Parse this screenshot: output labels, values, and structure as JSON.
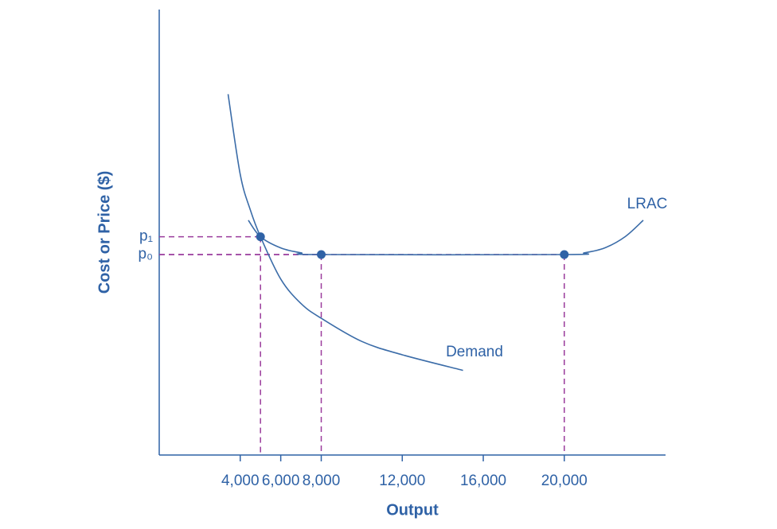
{
  "chart_data": {
    "type": "line",
    "x_label": "Output",
    "y_label": "Cost or Price ($)",
    "xlim": [
      0,
      25000
    ],
    "ylim": [
      0,
      100
    ],
    "xticks": [
      {
        "value": 4000,
        "label": "4,000"
      },
      {
        "value": 6000,
        "label": "6,000"
      },
      {
        "value": 8000,
        "label": "8,000"
      },
      {
        "value": 12000,
        "label": "12,000"
      },
      {
        "value": 16000,
        "label": "16,000"
      },
      {
        "value": 20000,
        "label": "20,000"
      }
    ],
    "yticks": [
      {
        "value": 49,
        "label": "p₁"
      },
      {
        "value": 45,
        "label": "p₀"
      }
    ],
    "series": [
      {
        "name": "LRAC",
        "color": "#3b6ca8",
        "x": [
          4400,
          5000,
          6000,
          7000,
          8000,
          20000,
          21000,
          22000,
          23000,
          23900
        ],
        "values": [
          52.7,
          49,
          46.5,
          45.4,
          45,
          45,
          45.4,
          46.5,
          49,
          52.7
        ]
      },
      {
        "name": "Demand",
        "color": "#3b6ca8",
        "x": [
          3400,
          4000,
          4500,
          5000,
          6000,
          7000,
          8000,
          10000,
          12000,
          15000
        ],
        "values": [
          81,
          63,
          55,
          49,
          39.5,
          34,
          30.7,
          25.5,
          22.5,
          19
        ]
      }
    ],
    "points": {
      "color": "#2f62a6",
      "guide_color": "#9a3b9c",
      "x": [
        5000,
        8000,
        20000
      ],
      "values": [
        49,
        45,
        45
      ]
    }
  }
}
